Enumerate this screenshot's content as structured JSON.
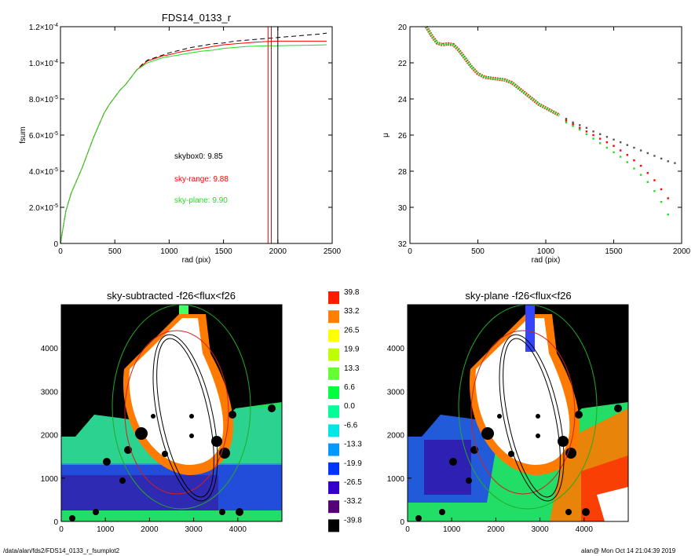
{
  "chart_data": [
    {
      "type": "line",
      "title": "FDS14_0133_r",
      "xlabel": "rad (pix)",
      "ylabel": "fsum",
      "xlim": [
        0,
        2500
      ],
      "ylim": [
        0,
        0.00012
      ],
      "x_ticks": [
        "0",
        "500",
        "1000",
        "1500",
        "2000",
        "2500"
      ],
      "y_ticks": [
        {
          "mant": "0",
          "exp": ""
        },
        {
          "mant": "2.0×10",
          "exp": "-5"
        },
        {
          "mant": "4.0×10",
          "exp": "-5"
        },
        {
          "mant": "6.0×10",
          "exp": "-5"
        },
        {
          "mant": "8.0×10",
          "exp": "-5"
        },
        {
          "mant": "1.0×10",
          "exp": "-4"
        },
        {
          "mant": "1.2×10",
          "exp": "-4"
        }
      ],
      "x": [
        0,
        50,
        100,
        150,
        200,
        250,
        300,
        350,
        400,
        450,
        500,
        550,
        600,
        650,
        700,
        750,
        800,
        850,
        900,
        950,
        1000,
        1100,
        1200,
        1300,
        1400,
        1500,
        1600,
        1700,
        1800,
        1900,
        2000,
        2100,
        2200,
        2300,
        2400,
        2450
      ],
      "series": [
        {
          "color": "#000000",
          "dash": true,
          "values": [
            0,
            1.8e-05,
            2.8e-05,
            3.5e-05,
            4.2e-05,
            5e-05,
            5.8e-05,
            6.5e-05,
            7.2e-05,
            7.7e-05,
            8.1e-05,
            8.5e-05,
            8.8e-05,
            9.2e-05,
            9.6e-05,
            9.9e-05,
            0.0001015,
            0.0001025,
            0.0001035,
            0.0001045,
            0.0001055,
            0.000107,
            0.0001085,
            0.0001095,
            0.0001105,
            0.000111,
            0.000112,
            0.0001125,
            0.000113,
            0.0001135,
            0.000114,
            0.0001145,
            0.000115,
            0.0001155,
            0.000116,
            0.0001165
          ]
        },
        {
          "color": "#ff0000",
          "dash": false,
          "values": [
            0,
            1.8e-05,
            2.8e-05,
            3.5e-05,
            4.2e-05,
            5e-05,
            5.8e-05,
            6.5e-05,
            7.2e-05,
            7.7e-05,
            8.1e-05,
            8.5e-05,
            8.8e-05,
            9.2e-05,
            9.6e-05,
            9.85e-05,
            0.000101,
            0.000102,
            0.000103,
            0.000104,
            0.0001045,
            0.000106,
            0.000107,
            0.000108,
            0.000109,
            0.00011,
            0.0001105,
            0.000111,
            0.0001115,
            0.0001118,
            0.000112,
            0.000112,
            0.000112,
            0.000112,
            0.000112,
            0.000112
          ]
        },
        {
          "color": "#22dd22",
          "dash": false,
          "values": [
            0,
            1.8e-05,
            2.8e-05,
            3.5e-05,
            4.2e-05,
            5e-05,
            5.8e-05,
            6.5e-05,
            7.2e-05,
            7.7e-05,
            8.1e-05,
            8.5e-05,
            8.8e-05,
            9.2e-05,
            9.6e-05,
            9.8e-05,
            0.0001,
            0.000101,
            0.000102,
            0.000103,
            0.0001035,
            0.0001045,
            0.0001055,
            0.0001065,
            0.000107,
            0.000108,
            0.0001085,
            0.000109,
            0.0001092,
            0.0001094,
            0.0001095,
            0.0001096,
            0.0001097,
            0.0001098,
            0.0001099,
            0.00011
          ]
        }
      ],
      "vlines": [
        {
          "x": 1910,
          "color": "#ff0000"
        },
        {
          "x": 1940,
          "color": "#ff0000"
        },
        {
          "x": 2000,
          "color": "#000000"
        }
      ],
      "annotations": [
        {
          "text": "skybox0:  9.85",
          "color": "#000000"
        },
        {
          "text": "sky-range:  9.88",
          "color": "#ff0000"
        },
        {
          "text": "sky-plane:  9.90",
          "color": "#22dd22"
        }
      ]
    },
    {
      "type": "scatter",
      "title": "",
      "xlabel": "rad (pix)",
      "ylabel": "μ",
      "xlim": [
        0,
        2000
      ],
      "ylim": [
        32,
        20
      ],
      "x_ticks": [
        "0",
        "500",
        "1000",
        "1500",
        "2000"
      ],
      "y_ticks": [
        "20",
        "22",
        "24",
        "26",
        "28",
        "30",
        "32"
      ],
      "profile_x": [
        120,
        160,
        200,
        240,
        280,
        320,
        360,
        400,
        450,
        500,
        550,
        600,
        650,
        700,
        750,
        800,
        850,
        900,
        950,
        1000,
        1050,
        1100
      ],
      "profile_y": [
        20.0,
        20.5,
        20.9,
        21.0,
        20.95,
        21.0,
        21.3,
        21.7,
        22.2,
        22.6,
        22.8,
        22.85,
        22.9,
        22.95,
        23.1,
        23.4,
        23.7,
        24.0,
        24.3,
        24.5,
        24.7,
        24.9
      ],
      "series": [
        {
          "color": "#555555",
          "x": [
            1150,
            1200,
            1250,
            1300,
            1350,
            1400,
            1450,
            1500,
            1550,
            1600,
            1650,
            1700,
            1750,
            1800,
            1850,
            1900,
            1950
          ],
          "values": [
            25.1,
            25.3,
            25.45,
            25.6,
            25.8,
            25.95,
            26.1,
            26.25,
            26.4,
            26.55,
            26.7,
            26.85,
            27.0,
            27.15,
            27.3,
            27.45,
            27.55
          ]
        },
        {
          "color": "#ff0000",
          "x": [
            1150,
            1200,
            1250,
            1300,
            1350,
            1400,
            1450,
            1500,
            1550,
            1600,
            1650,
            1700,
            1750,
            1800,
            1850,
            1900
          ],
          "values": [
            25.2,
            25.4,
            25.6,
            25.8,
            26.0,
            26.2,
            26.4,
            26.6,
            26.85,
            27.1,
            27.4,
            27.7,
            28.1,
            28.5,
            29.0,
            29.5
          ]
        },
        {
          "color": "#22dd22",
          "x": [
            1150,
            1200,
            1250,
            1300,
            1350,
            1400,
            1450,
            1500,
            1550,
            1600,
            1650,
            1700,
            1750,
            1800,
            1850,
            1900
          ],
          "values": [
            25.3,
            25.5,
            25.7,
            25.95,
            26.2,
            26.45,
            26.7,
            26.95,
            27.2,
            27.5,
            27.85,
            28.2,
            28.6,
            29.1,
            29.7,
            30.4
          ]
        }
      ]
    },
    {
      "type": "heatmap",
      "title": "sky-subtracted -f26<flux<f26",
      "xlim": [
        0,
        5000
      ],
      "ylim": [
        0,
        5000
      ],
      "x_ticks": [
        "0",
        "1000",
        "2000",
        "3000",
        "4000"
      ],
      "y_ticks": [
        "0",
        "1000",
        "2000",
        "3000",
        "4000"
      ]
    },
    {
      "type": "heatmap",
      "title": "sky-plane -f26<flux<f26",
      "xlim": [
        0,
        5000
      ],
      "ylim": [
        0,
        5000
      ],
      "x_ticks": [
        "0",
        "1000",
        "2000",
        "3000",
        "4000"
      ],
      "y_ticks": [
        "0",
        "1000",
        "2000",
        "3000",
        "4000"
      ]
    }
  ],
  "colorbar": {
    "labels": [
      "39.8",
      "33.2",
      "26.5",
      "19.9",
      "13.3",
      "6.6",
      "0.0",
      "-6.6",
      "-13.3",
      "-19.9",
      "-26.5",
      "-33.2",
      "-39.8"
    ],
    "colors": [
      "#ff1a00",
      "#ff8000",
      "#ffff00",
      "#bfff00",
      "#66ff33",
      "#00ff40",
      "#00ff99",
      "#00e6e6",
      "#0099ff",
      "#0033ff",
      "#3300cc",
      "#550077",
      "#000000"
    ]
  },
  "footer": {
    "left": "/data/alan/fds2/FDS14_0133_r_fsumplot2",
    "right": "alan@  Mon Oct 14 21:04:39 2019"
  }
}
